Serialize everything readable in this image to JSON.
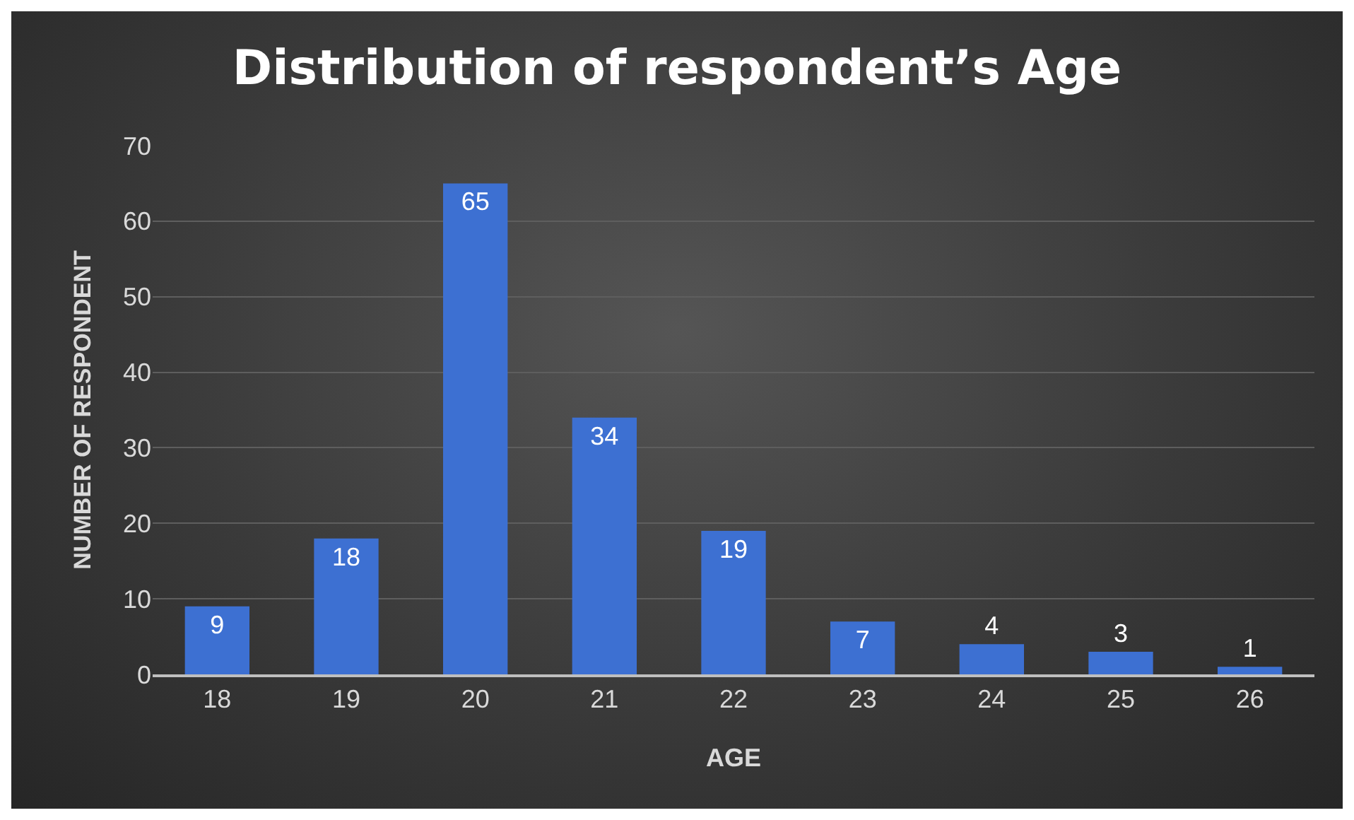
{
  "chart_data": {
    "type": "bar",
    "title": "Distribution of respondent’s Age",
    "xlabel": "AGE",
    "ylabel": "NUMBER OF RESPONDENT",
    "categories": [
      "18",
      "19",
      "20",
      "21",
      "22",
      "23",
      "24",
      "25",
      "26"
    ],
    "values": [
      9,
      18,
      65,
      34,
      19,
      7,
      4,
      3,
      1
    ],
    "color": "#3d70d2",
    "ylim": [
      0,
      70
    ],
    "yticks": [
      0,
      10,
      20,
      30,
      40,
      50,
      60,
      70
    ],
    "grid": "y",
    "data_labels": true
  }
}
